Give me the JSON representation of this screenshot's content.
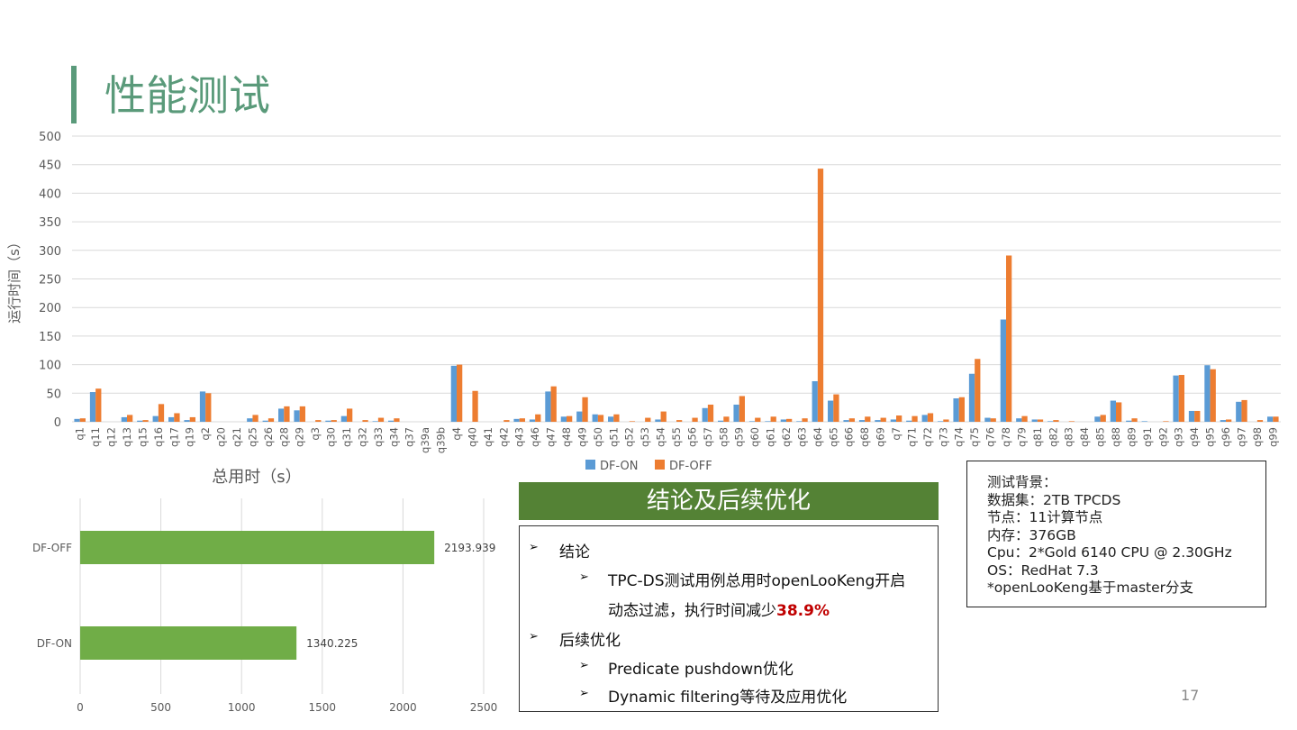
{
  "title": "性能测试",
  "chart_data": [
    {
      "type": "bar",
      "title": "",
      "ylabel": "运行时间（s）",
      "xlabel": "",
      "ylim": [
        0,
        500
      ],
      "yticks": [
        0,
        50,
        100,
        150,
        200,
        250,
        300,
        350,
        400,
        450,
        500
      ],
      "grid": true,
      "legend": "bottom",
      "categories": [
        "q1",
        "q11",
        "q12",
        "q13",
        "q15",
        "q16",
        "q17",
        "q19",
        "q2",
        "q20",
        "q21",
        "q25",
        "q26",
        "q28",
        "q29",
        "q3",
        "q30",
        "q31",
        "q32",
        "q33",
        "q34",
        "q37",
        "q39a",
        "q39b",
        "q4",
        "q40",
        "q41",
        "q42",
        "q43",
        "q46",
        "q47",
        "q48",
        "q49",
        "q50",
        "q51",
        "q52",
        "q53",
        "q54",
        "q55",
        "q56",
        "q57",
        "q58",
        "q59",
        "q60",
        "q61",
        "q62",
        "q63",
        "q64",
        "q65",
        "q66",
        "q68",
        "q69",
        "q7",
        "q71",
        "q72",
        "q73",
        "q74",
        "q75",
        "q76",
        "q78",
        "q79",
        "q81",
        "q82",
        "q83",
        "q84",
        "q85",
        "q88",
        "q89",
        "q91",
        "q92",
        "q93",
        "q94",
        "q95",
        "q96",
        "q97",
        "q98",
        "q99"
      ],
      "series": [
        {
          "name": "DF-ON",
          "color": "#5b9bd5",
          "values": [
            5,
            52,
            0,
            8,
            2,
            10,
            8,
            3,
            53,
            0,
            0,
            6,
            2,
            23,
            20,
            0,
            2,
            10,
            0,
            1,
            2,
            0,
            0,
            0,
            98,
            0,
            0,
            0,
            5,
            4,
            53,
            9,
            18,
            13,
            9,
            0,
            0,
            4,
            0,
            0,
            24,
            2,
            30,
            1,
            1,
            4,
            1,
            71,
            37,
            3,
            3,
            3,
            4,
            2,
            12,
            1,
            41,
            84,
            7,
            179,
            6,
            4,
            1,
            0,
            0,
            9,
            37,
            2,
            1,
            0,
            81,
            19,
            99,
            3,
            35,
            0,
            9
          ]
        },
        {
          "name": "DF-OFF",
          "color": "#ed7d31",
          "values": [
            6,
            58,
            0,
            12,
            3,
            31,
            15,
            8,
            50,
            0,
            0,
            12,
            6,
            27,
            27,
            3,
            3,
            23,
            3,
            7,
            6,
            0,
            0,
            0,
            100,
            54,
            0,
            3,
            6,
            13,
            62,
            10,
            43,
            12,
            13,
            1,
            7,
            18,
            3,
            7,
            30,
            9,
            45,
            7,
            9,
            5,
            6,
            443,
            48,
            6,
            9,
            7,
            11,
            10,
            15,
            4,
            43,
            110,
            6,
            291,
            10,
            4,
            3,
            1,
            0,
            12,
            34,
            6,
            0,
            1,
            82,
            19,
            92,
            4,
            38,
            3,
            9
          ]
        }
      ]
    },
    {
      "type": "bar",
      "orientation": "horizontal",
      "title": "总用时（s）",
      "xlim": [
        0,
        2500
      ],
      "xticks": [
        0,
        500,
        1000,
        1500,
        2000,
        2500
      ],
      "color": "#70ad47",
      "categories": [
        "DF-OFF",
        "DF-ON"
      ],
      "values": [
        2193.939,
        1340.225
      ],
      "labels": [
        "2193.939",
        "1340.225"
      ]
    }
  ],
  "conclusion": {
    "header": "结论及后续优化",
    "item1": "结论",
    "item1_sub_a": "TPC-DS测试用例总用时openLooKeng开启",
    "item1_sub_b": "动态过滤，执行时间减少",
    "item1_highlight": "38.9%",
    "item2": "后续优化",
    "item2_sub1": "Predicate pushdown优化",
    "item2_sub2": "Dynamic filtering等待及应用优化",
    "bullet": "➢"
  },
  "info": {
    "lines": [
      "测试背景：",
      "数据集：2TB TPCDS",
      "节点：11计算节点",
      "内存：376GB",
      "Cpu：2*Gold 6140 CPU @ 2.30GHz",
      "OS：RedHat 7.3",
      "*openLooKeng基于master分支"
    ]
  },
  "page_number": "17"
}
